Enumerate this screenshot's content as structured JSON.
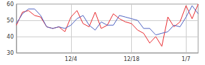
{
  "chart_data": {
    "type": "line",
    "categories": [
      null,
      null,
      null,
      null,
      null,
      null,
      null,
      null,
      null,
      "12/4",
      null,
      null,
      null,
      null,
      null,
      null,
      null,
      null,
      null,
      "12/18",
      null,
      null,
      null,
      null,
      null,
      null,
      null,
      null,
      "1/7",
      null,
      null
    ],
    "series": [
      {
        "color": "#e8262b",
        "values": [
          47,
          55,
          56,
          53,
          52,
          46,
          45,
          46,
          43,
          52,
          56,
          48,
          46,
          55,
          45,
          47,
          54,
          51,
          49,
          48,
          44,
          42,
          36,
          40,
          34,
          52,
          46,
          49,
          59,
          51,
          60
        ]
      },
      {
        "color": "#4a5fc1",
        "values": [
          48,
          54,
          57,
          57,
          53,
          46,
          45,
          46,
          45,
          47,
          51,
          53,
          47,
          44,
          49,
          47,
          47,
          53,
          52,
          51,
          50,
          45,
          45,
          41,
          42,
          43,
          47,
          46,
          52,
          59,
          54
        ]
      }
    ],
    "ylim": [
      30,
      60
    ],
    "yticks": [
      30,
      40,
      50,
      60
    ],
    "grid": true
  }
}
